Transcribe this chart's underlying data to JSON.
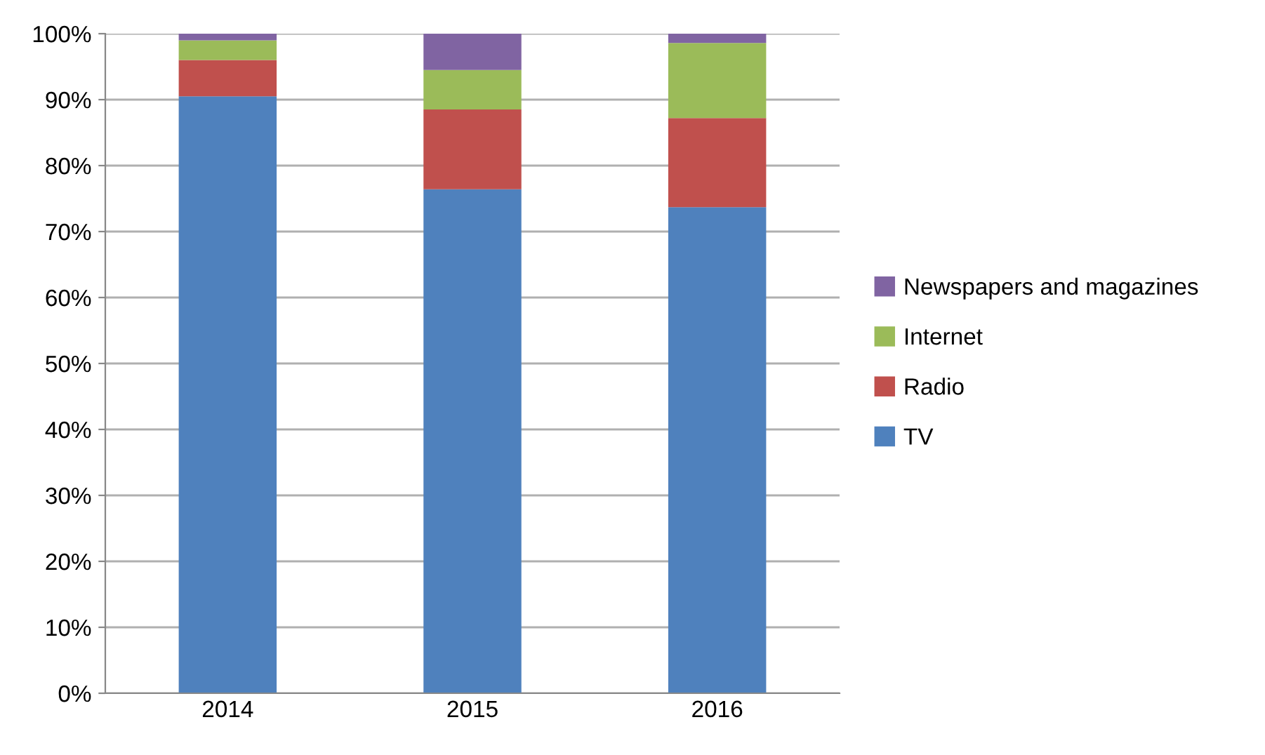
{
  "chart_data": {
    "type": "bar",
    "stacked": true,
    "categories": [
      "2014",
      "2015",
      "2016"
    ],
    "series": [
      {
        "name": "TV",
        "color": "#4f81bd",
        "values": [
          90.5,
          76.4,
          73.7
        ]
      },
      {
        "name": "Radio",
        "color": "#c0504d",
        "values": [
          5.5,
          12.1,
          13.5
        ]
      },
      {
        "name": "Internet",
        "color": "#9bbb59",
        "values": [
          3.0,
          6.0,
          11.4
        ]
      },
      {
        "name": "Newspapers and magazines",
        "color": "#8064a2",
        "values": [
          1.0,
          5.5,
          1.4
        ]
      }
    ],
    "ylim": [
      0,
      100
    ],
    "yticks": [
      {
        "value": 0,
        "label": "0%"
      },
      {
        "value": 10,
        "label": "10%"
      },
      {
        "value": 20,
        "label": "20%"
      },
      {
        "value": 30,
        "label": "30%"
      },
      {
        "value": 40,
        "label": "40%"
      },
      {
        "value": 50,
        "label": "50%"
      },
      {
        "value": 60,
        "label": "60%"
      },
      {
        "value": 70,
        "label": "70%"
      },
      {
        "value": 80,
        "label": "80%"
      },
      {
        "value": 90,
        "label": "90%"
      },
      {
        "value": 100,
        "label": "100%"
      }
    ],
    "grid": "y",
    "legend": "right"
  }
}
